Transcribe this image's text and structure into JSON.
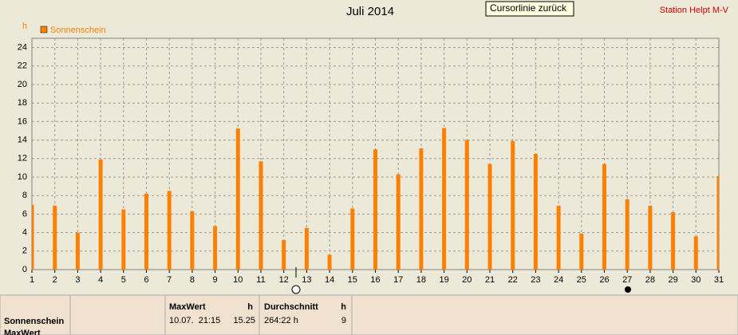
{
  "chart_data": {
    "type": "bar",
    "title": "Juli 2014",
    "y_label": "h",
    "x": [
      1,
      2,
      3,
      4,
      5,
      6,
      7,
      8,
      9,
      10,
      11,
      12,
      13,
      14,
      15,
      16,
      17,
      18,
      19,
      20,
      21,
      22,
      23,
      24,
      25,
      26,
      27,
      28,
      29,
      30,
      31
    ],
    "series": [
      {
        "name": "Sonnenschein",
        "color": "#ff8000",
        "values": [
          7.0,
          6.9,
          4.0,
          11.9,
          6.5,
          8.2,
          8.5,
          6.3,
          4.7,
          15.25,
          11.7,
          3.2,
          4.5,
          1.6,
          6.6,
          13.0,
          10.3,
          13.1,
          15.3,
          14.0,
          11.4,
          13.9,
          12.5,
          6.9,
          3.9,
          11.4,
          7.6,
          6.9,
          6.2,
          3.6,
          10.1
        ]
      }
    ],
    "xlim": [
      1,
      31
    ],
    "xticks": [
      1,
      2,
      3,
      4,
      5,
      6,
      7,
      8,
      9,
      10,
      11,
      12,
      13,
      14,
      15,
      16,
      17,
      18,
      19,
      20,
      21,
      22,
      23,
      24,
      25,
      26,
      27,
      28,
      29,
      30,
      31
    ],
    "ylim": [
      0,
      25
    ],
    "yticks": [
      0,
      2,
      4,
      6,
      8,
      10,
      12,
      14,
      16,
      18,
      20,
      22,
      24
    ],
    "grid": true,
    "legend": "top-left"
  },
  "ui": {
    "station": "Station Helpt M-V",
    "tooltip": "Cursorlinie zurück",
    "footer": {
      "row_label": "Sonnenschein",
      "row_label_2": "MaxWert",
      "max_header": "MaxWert",
      "max_unit": "h",
      "max_time": "10.07.  21:15",
      "max_value": "15.25",
      "avg_header": "Durchschnitt",
      "avg_unit": "h",
      "avg_value": "264:22 h",
      "avg_count": "9"
    }
  }
}
